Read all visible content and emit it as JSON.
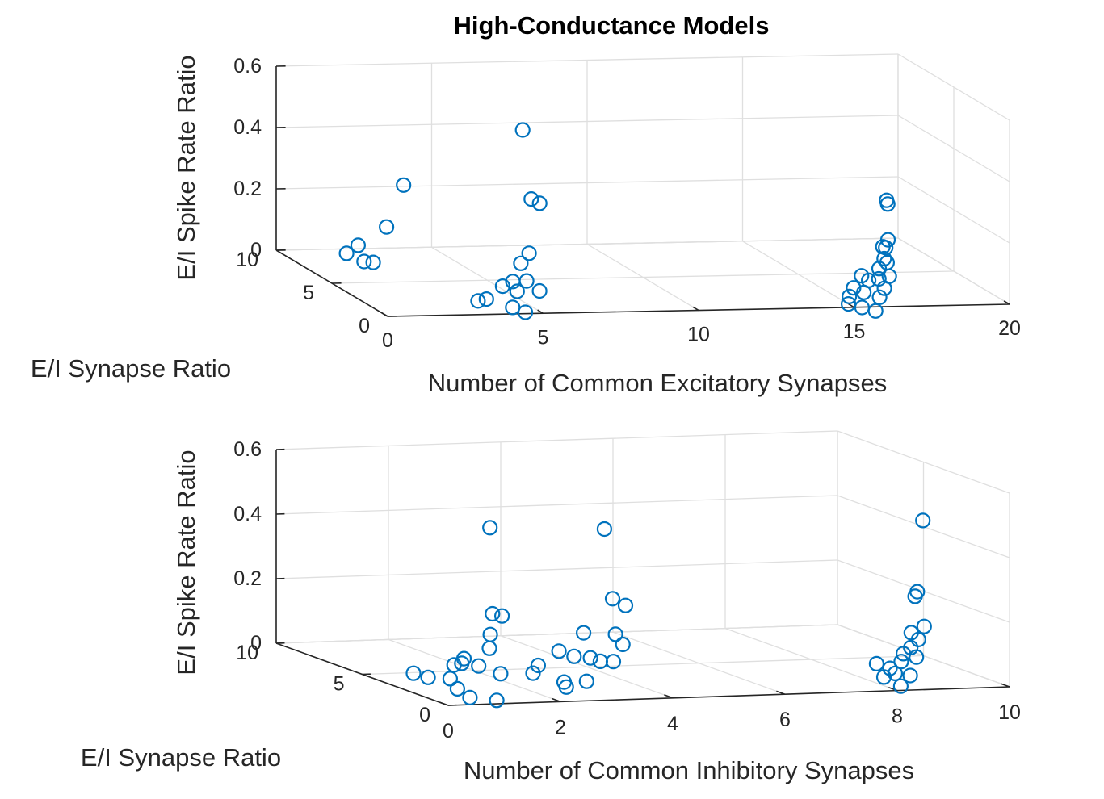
{
  "colors": {
    "marker": "#0072BD",
    "axis": "#262626",
    "grid": "#dfdfdf"
  },
  "chart_data": [
    {
      "type": "scatter",
      "title": "High-Conductance Models",
      "xlabel": "Number of Common Excitatory Synapses",
      "ylabel": "E/I Synapse Ratio",
      "zlabel": "E/I Spike Rate Ratio",
      "xlim": [
        0,
        20
      ],
      "ylim": [
        0,
        10
      ],
      "zlim": [
        0,
        0.6
      ],
      "x_ticks": [
        "0",
        "5",
        "10",
        "15",
        "20"
      ],
      "y_ticks": [
        "0",
        "5",
        "10"
      ],
      "z_ticks": [
        "0",
        "0.2",
        "0.4",
        "0.6"
      ],
      "grid": true,
      "marker": "open-circle",
      "points": [
        [
          0.9,
          6.2,
          0.07
        ],
        [
          1.2,
          6.0,
          0.1
        ],
        [
          1.5,
          6.3,
          0.04
        ],
        [
          1.9,
          6.6,
          0.03
        ],
        [
          2.4,
          6.8,
          0.14
        ],
        [
          3.2,
          7.5,
          0.26
        ],
        [
          3.3,
          1.1,
          0.02
        ],
        [
          3.5,
          0.9,
          0.03
        ],
        [
          4.2,
          0.5,
          0.01
        ],
        [
          4.5,
          0.2,
          0.0
        ],
        [
          4.2,
          1.4,
          0.06
        ],
        [
          4.6,
          1.6,
          0.07
        ],
        [
          4.7,
          1.5,
          0.04
        ],
        [
          4.9,
          1.2,
          0.08
        ],
        [
          5.0,
          2.0,
          0.12
        ],
        [
          5.3,
          2.1,
          0.15
        ],
        [
          5.8,
          3.3,
          0.3
        ],
        [
          6.0,
          3.1,
          0.29
        ],
        [
          6.1,
          4.9,
          0.49
        ],
        [
          5.1,
          0.6,
          0.06
        ],
        [
          15.0,
          0.5,
          0.0
        ],
        [
          15.1,
          0.7,
          0.02
        ],
        [
          15.2,
          0.6,
          0.05
        ],
        [
          15.4,
          0.4,
          -0.01
        ],
        [
          15.6,
          0.8,
          0.03
        ],
        [
          15.8,
          0.3,
          -0.02
        ],
        [
          15.6,
          1.0,
          0.08
        ],
        [
          16.0,
          0.5,
          0.02
        ],
        [
          15.9,
          1.2,
          0.06
        ],
        [
          16.2,
          1.1,
          0.1
        ],
        [
          16.3,
          1.4,
          0.06
        ],
        [
          16.4,
          1.2,
          0.13
        ],
        [
          16.3,
          0.9,
          0.04
        ],
        [
          16.6,
          1.3,
          0.07
        ],
        [
          16.6,
          1.5,
          0.11
        ],
        [
          16.5,
          1.6,
          0.16
        ],
        [
          16.7,
          1.7,
          0.18
        ],
        [
          16.7,
          1.9,
          0.15
        ],
        [
          16.8,
          2.0,
          0.29
        ],
        [
          16.8,
          2.1,
          0.3
        ]
      ]
    },
    {
      "type": "scatter",
      "title": "",
      "xlabel": "Number of Common Inhibitory Synapses",
      "ylabel": "E/I Synapse Ratio",
      "zlabel": "E/I Spike Rate Ratio",
      "xlim": [
        0,
        10
      ],
      "ylim": [
        0,
        10
      ],
      "zlim": [
        0,
        0.6
      ],
      "x_ticks": [
        "0",
        "2",
        "4",
        "6",
        "8",
        "10"
      ],
      "y_ticks": [
        "0",
        "5",
        "10"
      ],
      "z_ticks": [
        "0",
        "0.2",
        "0.4",
        "0.6"
      ],
      "grid": true,
      "marker": "open-circle",
      "points": [
        [
          0.3,
          3.0,
          0.04
        ],
        [
          0.5,
          2.8,
          0.03
        ],
        [
          0.8,
          2.5,
          0.03
        ],
        [
          0.9,
          2.4,
          0.0
        ],
        [
          0.9,
          2.6,
          0.07
        ],
        [
          1.0,
          2.0,
          -0.02
        ],
        [
          1.1,
          2.8,
          0.07
        ],
        [
          1.2,
          3.0,
          0.08
        ],
        [
          1.4,
          2.8,
          0.06
        ],
        [
          1.5,
          2.5,
          0.12
        ],
        [
          1.6,
          2.4,
          -0.04
        ],
        [
          1.7,
          2.5,
          0.04
        ],
        [
          1.7,
          3.1,
          0.15
        ],
        [
          1.8,
          3.3,
          0.21
        ],
        [
          2.0,
          3.4,
          0.2
        ],
        [
          2.0,
          4.1,
          0.46
        ],
        [
          2.4,
          2.6,
          0.06
        ],
        [
          2.4,
          2.9,
          0.03
        ],
        [
          2.8,
          2.7,
          0.1
        ],
        [
          2.8,
          2.4,
          0.01
        ],
        [
          2.9,
          2.6,
          -0.01
        ],
        [
          3.1,
          2.8,
          0.08
        ],
        [
          3.2,
          2.4,
          0.01
        ],
        [
          3.3,
          2.5,
          0.08
        ],
        [
          3.3,
          2.9,
          0.15
        ],
        [
          3.6,
          2.9,
          0.06
        ],
        [
          3.8,
          2.8,
          0.06
        ],
        [
          3.9,
          3.0,
          0.14
        ],
        [
          4.0,
          2.9,
          0.11
        ],
        [
          4.0,
          3.5,
          0.24
        ],
        [
          4.2,
          3.4,
          0.22
        ],
        [
          4.1,
          4.3,
          0.44
        ],
        [
          8.0,
          1.2,
          0.06
        ],
        [
          8.1,
          1.1,
          0.02
        ],
        [
          8.3,
          1.1,
          0.03
        ],
        [
          8.3,
          1.4,
          0.04
        ],
        [
          8.4,
          1.1,
          -0.01
        ],
        [
          8.5,
          1.4,
          0.06
        ],
        [
          8.6,
          1.2,
          0.02
        ],
        [
          8.6,
          1.6,
          0.08
        ],
        [
          8.7,
          1.5,
          0.1
        ],
        [
          8.8,
          1.8,
          0.14
        ],
        [
          8.8,
          1.5,
          0.07
        ],
        [
          8.9,
          1.7,
          0.12
        ],
        [
          8.9,
          1.9,
          0.25
        ],
        [
          9.0,
          2.1,
          0.26
        ],
        [
          9.0,
          1.7,
          0.16
        ],
        [
          9.1,
          2.1,
          0.48
        ]
      ]
    }
  ]
}
